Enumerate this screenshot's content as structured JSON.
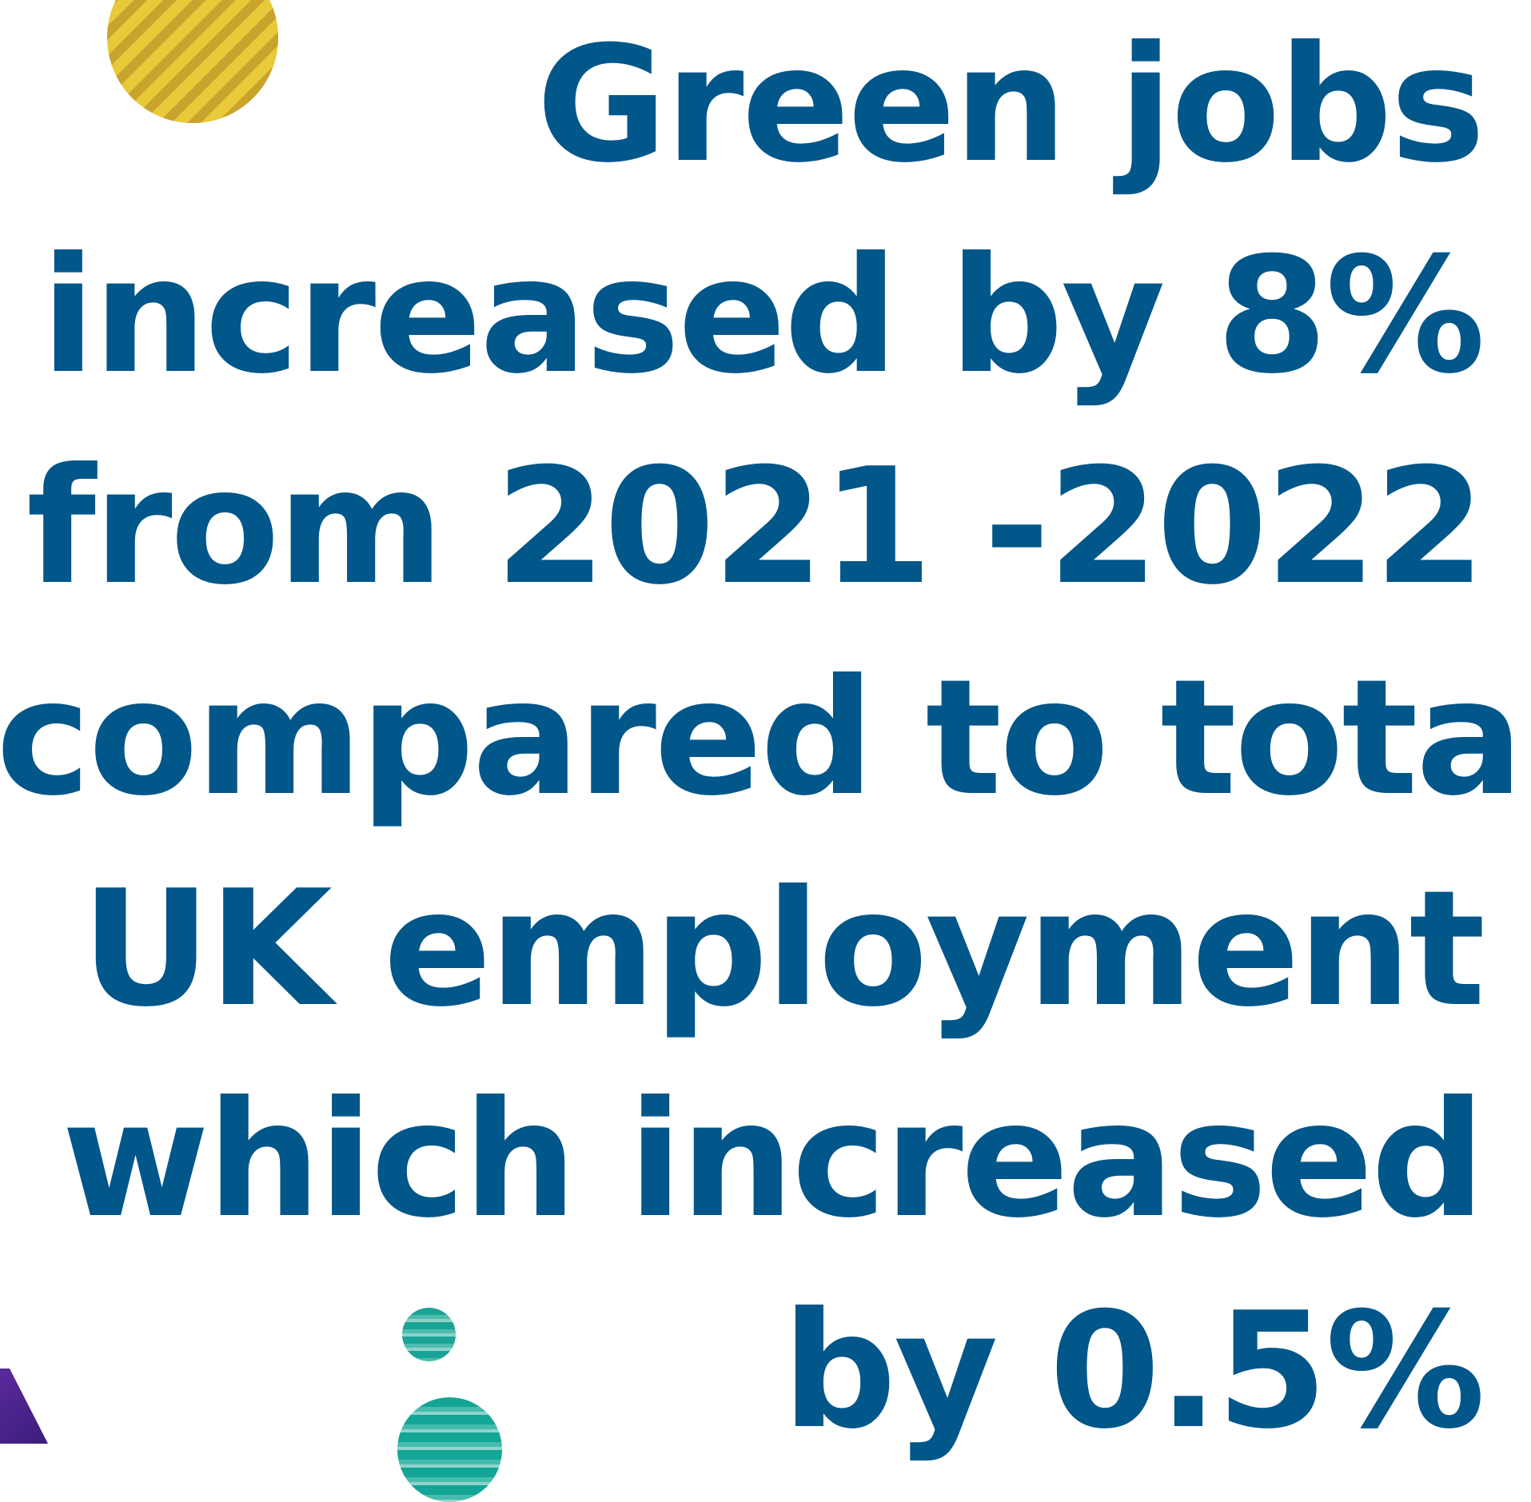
{
  "statement": {
    "line1": "Green jobs",
    "line2_text": "increased by ",
    "line2_value": "8%",
    "line3": "from 2021 -2022",
    "line4": "compared to total",
    "line5": "UK employment",
    "line6": "which increased",
    "line7_text": "by ",
    "line7_value": "0.5%"
  },
  "colors": {
    "text": "#01568a",
    "gold_circle": "#d4b032",
    "teal_dots": "#1aa497",
    "purple_corner": "#4a2490"
  },
  "icons": [
    "gold-circle-decoration",
    "teal-dot-decoration",
    "purple-triangle-decoration"
  ]
}
